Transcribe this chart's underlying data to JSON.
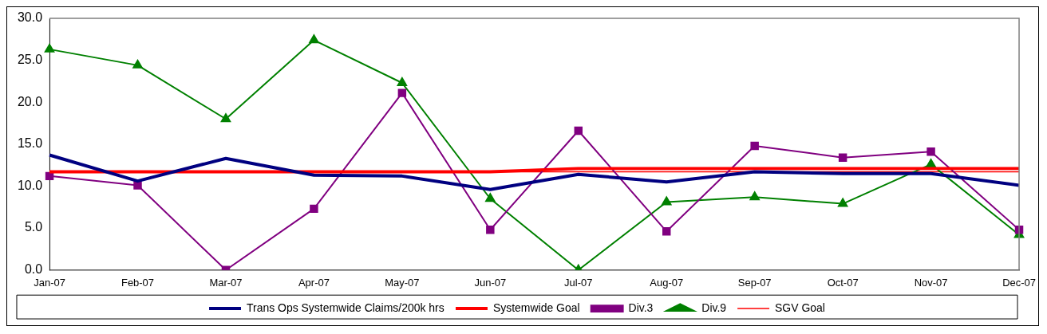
{
  "chart_data": {
    "type": "line",
    "categories": [
      "Jan-07",
      "Feb-07",
      "Mar-07",
      "Apr-07",
      "May-07",
      "Jun-07",
      "Jul-07",
      "Aug-07",
      "Sep-07",
      "Oct-07",
      "Nov-07",
      "Dec-07"
    ],
    "series": [
      {
        "name": "Trans Ops Systemwide Claims/200k hrs",
        "color": "#000080",
        "marker": "none",
        "values": [
          13.7,
          10.6,
          13.3,
          11.3,
          11.2,
          9.6,
          11.4,
          10.5,
          11.7,
          11.5,
          11.5,
          10.1
        ]
      },
      {
        "name": "Systemwide Goal",
        "color": "#ff0000",
        "marker": "none",
        "values": [
          11.7,
          11.7,
          11.7,
          11.7,
          11.7,
          11.7,
          12.1,
          12.1,
          12.1,
          12.1,
          12.1,
          12.1
        ]
      },
      {
        "name": "Div.3",
        "color": "#800080",
        "marker": "square",
        "values": [
          11.2,
          10.1,
          0,
          7.3,
          21.1,
          4.8,
          16.6,
          4.6,
          14.8,
          13.4,
          14.1,
          4.8
        ]
      },
      {
        "name": "Div.9",
        "color": "#008000",
        "marker": "triangle",
        "values": [
          26.3,
          24.4,
          18.0,
          27.4,
          22.3,
          8.5,
          0,
          8.1,
          8.7,
          7.9,
          12.6,
          4.2
        ]
      },
      {
        "name": "SGV Goal",
        "color": "#ff0000",
        "marker": "none",
        "values": [
          11.7,
          11.7,
          11.7,
          11.7,
          11.7,
          11.7,
          11.7,
          11.7,
          11.7,
          11.7,
          11.7,
          11.7
        ]
      }
    ],
    "ylim": [
      0,
      30
    ],
    "yticks": [
      {
        "value": 0,
        "label": "0.0"
      },
      {
        "value": 5,
        "label": "5.0"
      },
      {
        "value": 10,
        "label": "10.0"
      },
      {
        "value": 15,
        "label": "15.0"
      },
      {
        "value": 20,
        "label": "20.0"
      },
      {
        "value": 25,
        "label": "25.0"
      },
      {
        "value": 30,
        "label": "30.0"
      }
    ],
    "grid": false,
    "legend": "bottom"
  }
}
